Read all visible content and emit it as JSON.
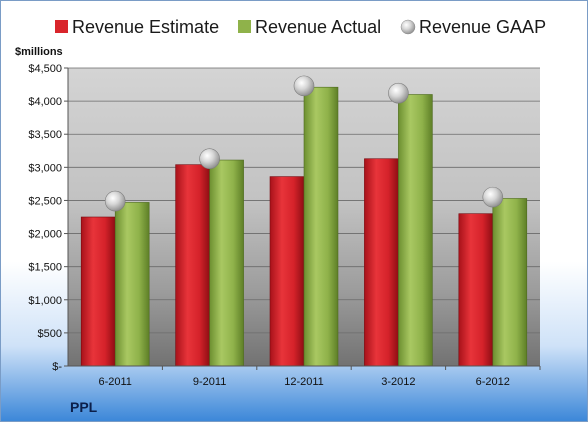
{
  "chart_data": {
    "type": "bar",
    "title": "",
    "xlabel": "",
    "ylabel": "$millions",
    "footer_label": "PPL",
    "categories": [
      "6-2011",
      "9-2011",
      "12-2011",
      "3-2012",
      "6-2012"
    ],
    "series": [
      {
        "name": "Revenue Estimate",
        "kind": "bar",
        "color": "#d9252b",
        "values": [
          2250,
          3040,
          2860,
          3130,
          2300
        ]
      },
      {
        "name": "Revenue Actual",
        "kind": "bar",
        "color": "#8fb24a",
        "values": [
          2470,
          3110,
          4210,
          4100,
          2530
        ]
      },
      {
        "name": "Revenue GAAP",
        "kind": "marker",
        "color": "#b8b8b8",
        "values": [
          2490,
          3130,
          4230,
          4120,
          2550
        ]
      }
    ],
    "ylim": [
      0,
      4500
    ],
    "yticks": [
      {
        "value": 0,
        "label": "$-"
      },
      {
        "value": 500,
        "label": "$500"
      },
      {
        "value": 1000,
        "label": "$1,000"
      },
      {
        "value": 1500,
        "label": "$1,500"
      },
      {
        "value": 2000,
        "label": "$2,000"
      },
      {
        "value": 2500,
        "label": "$2,500"
      },
      {
        "value": 3000,
        "label": "$3,000"
      },
      {
        "value": 3500,
        "label": "$3,500"
      },
      {
        "value": 4000,
        "label": "$4,000"
      },
      {
        "value": 4500,
        "label": "$4,500"
      }
    ],
    "grid": true,
    "legend_position": "top"
  }
}
